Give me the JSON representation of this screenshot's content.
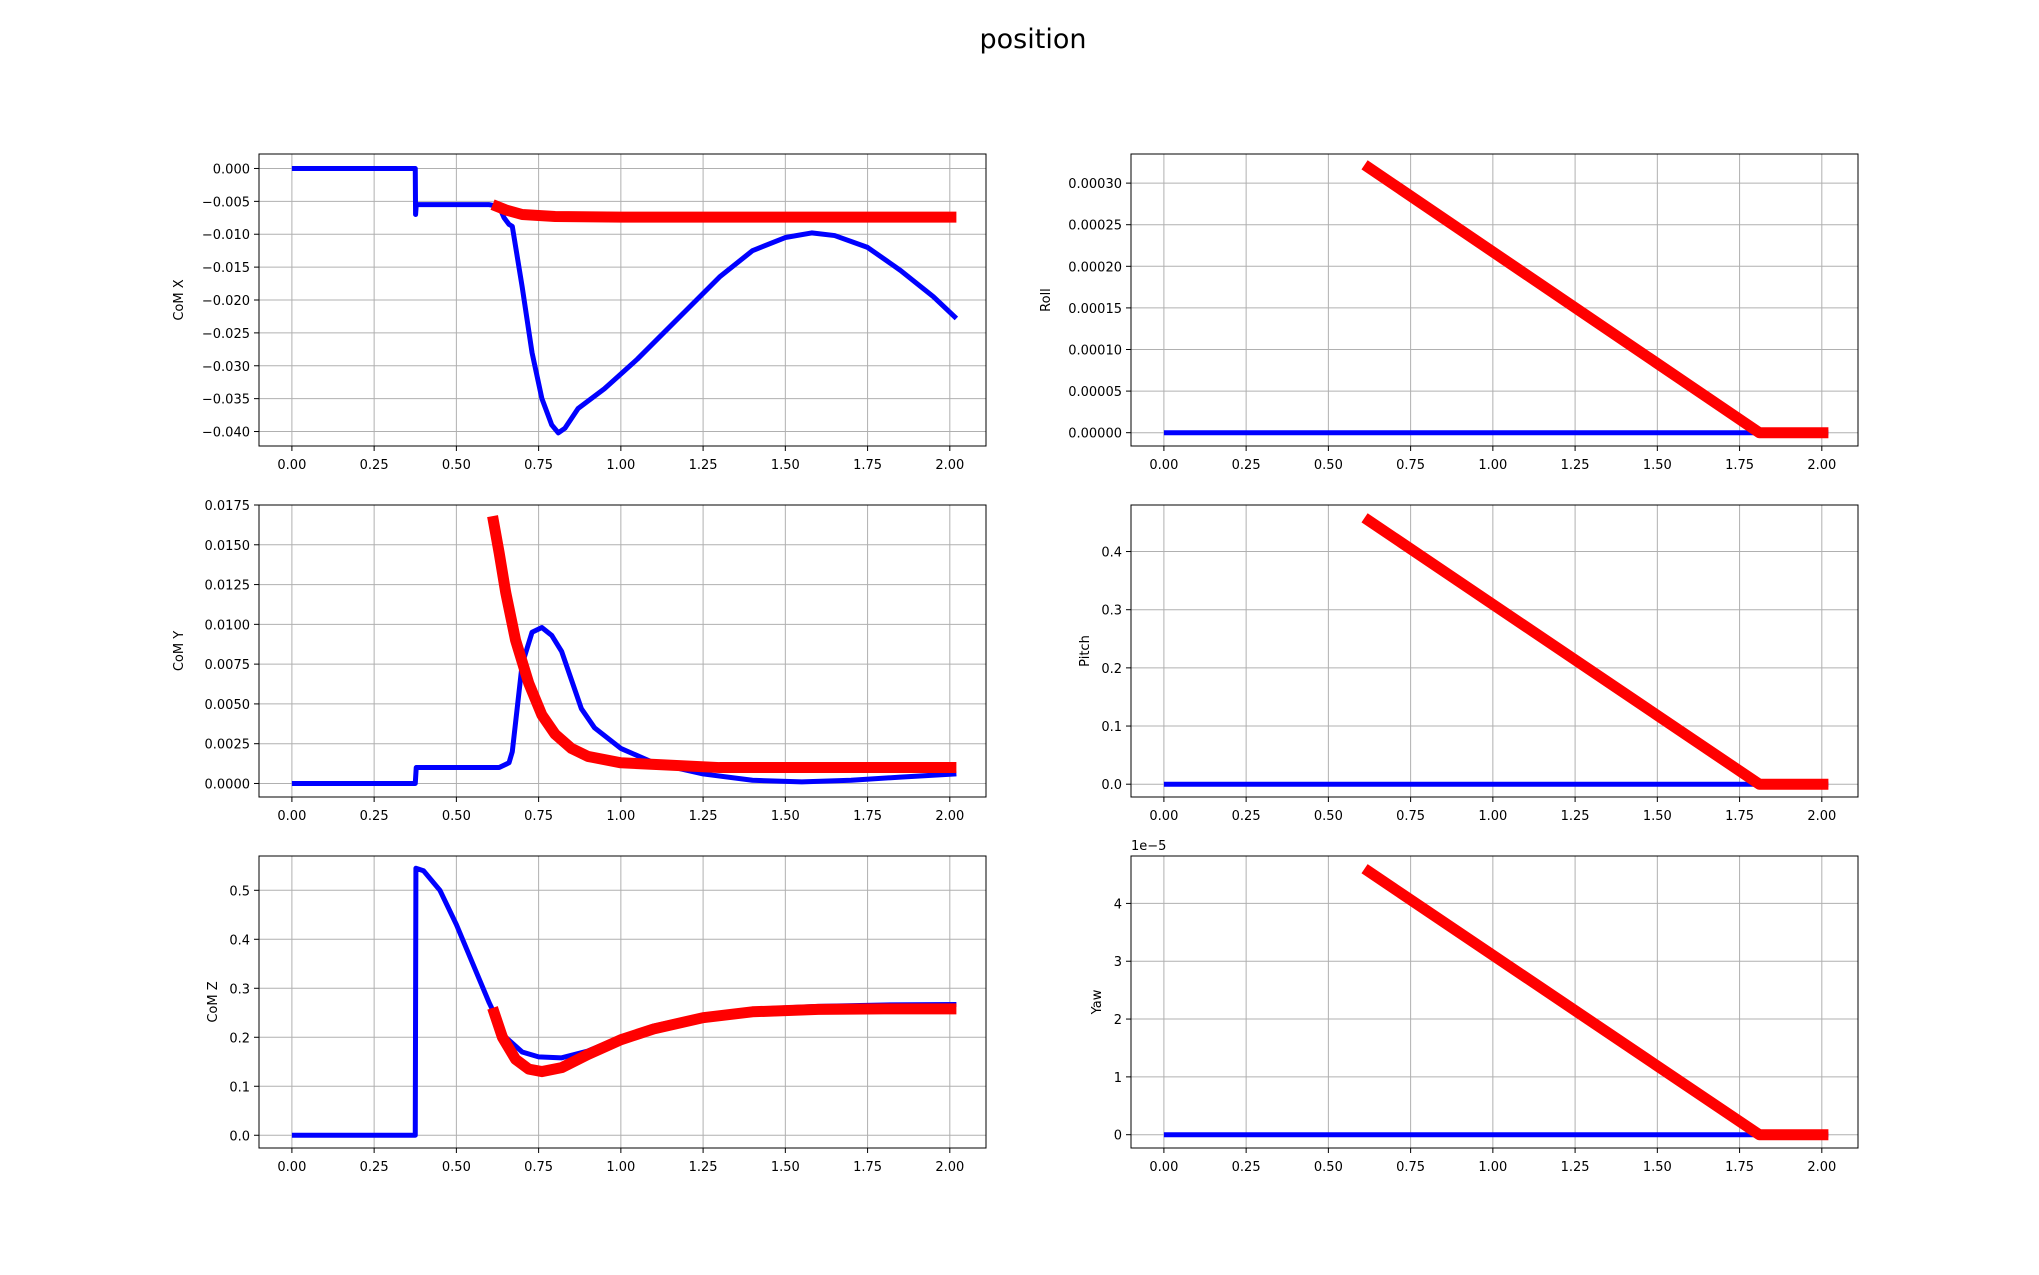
{
  "figure": {
    "title": "position"
  },
  "colors": {
    "measured": "#0000ff",
    "reference": "#ff0000",
    "grid": "#b0b0b0"
  },
  "chart_data": [
    {
      "id": "com-x",
      "type": "line",
      "ylabel": "CoM X",
      "xlim": [
        -0.1,
        2.11
      ],
      "ylim": [
        -0.0422,
        0.0022
      ],
      "xticks": [
        "0.00",
        "0.25",
        "0.50",
        "0.75",
        "1.00",
        "1.25",
        "1.50",
        "1.75",
        "2.00"
      ],
      "yticks": [
        "0.000",
        "−0.005",
        "−0.010",
        "−0.015",
        "−0.020",
        "−0.025",
        "−0.030",
        "−0.035",
        "−0.040"
      ],
      "grid": true,
      "series": [
        {
          "style": "measured",
          "points": [
            [
              0,
              0
            ],
            [
              0.375,
              0
            ],
            [
              0.376,
              -0.007
            ],
            [
              0.378,
              -0.0055
            ],
            [
              0.6,
              -0.0055
            ],
            [
              0.63,
              -0.0058
            ],
            [
              0.645,
              -0.0075
            ],
            [
              0.66,
              -0.0085
            ],
            [
              0.67,
              -0.0088
            ],
            [
              0.7,
              -0.018
            ],
            [
              0.73,
              -0.028
            ],
            [
              0.76,
              -0.035
            ],
            [
              0.79,
              -0.039
            ],
            [
              0.81,
              -0.0402
            ],
            [
              0.83,
              -0.0395
            ],
            [
              0.87,
              -0.0365
            ],
            [
              0.95,
              -0.0335
            ],
            [
              1.05,
              -0.029
            ],
            [
              1.2,
              -0.0215
            ],
            [
              1.3,
              -0.0165
            ],
            [
              1.4,
              -0.0125
            ],
            [
              1.5,
              -0.0105
            ],
            [
              1.58,
              -0.0098
            ],
            [
              1.65,
              -0.0102
            ],
            [
              1.75,
              -0.012
            ],
            [
              1.85,
              -0.0155
            ],
            [
              1.95,
              -0.0195
            ],
            [
              2.02,
              -0.0228
            ]
          ]
        },
        {
          "style": "reference",
          "points": [
            [
              0.61,
              -0.0055
            ],
            [
              0.65,
              -0.0063
            ],
            [
              0.7,
              -0.007
            ],
            [
              0.8,
              -0.0073
            ],
            [
              1.0,
              -0.0074
            ],
            [
              1.5,
              -0.0074
            ],
            [
              2.02,
              -0.0074
            ]
          ]
        }
      ]
    },
    {
      "id": "roll",
      "type": "line",
      "ylabel": "Roll",
      "xlim": [
        -0.1,
        2.11
      ],
      "ylim": [
        -1.6e-05,
        0.000335
      ],
      "xticks": [
        "0.00",
        "0.25",
        "0.50",
        "0.75",
        "1.00",
        "1.25",
        "1.50",
        "1.75",
        "2.00"
      ],
      "yticks": [
        "0.00000",
        "0.00005",
        "0.00010",
        "0.00015",
        "0.00020",
        "0.00025",
        "0.00030"
      ],
      "grid": true,
      "series": [
        {
          "style": "measured",
          "points": [
            [
              0,
              0
            ],
            [
              2.02,
              0
            ]
          ]
        },
        {
          "style": "reference",
          "points": [
            [
              0.61,
              0.000322
            ],
            [
              1.81,
              0
            ],
            [
              2.02,
              0
            ]
          ]
        }
      ]
    },
    {
      "id": "com-y",
      "type": "line",
      "ylabel": "CoM Y",
      "xlim": [
        -0.1,
        2.11
      ],
      "ylim": [
        -0.00085,
        0.0175
      ],
      "xticks": [
        "0.00",
        "0.25",
        "0.50",
        "0.75",
        "1.00",
        "1.25",
        "1.50",
        "1.75",
        "2.00"
      ],
      "yticks": [
        "0.0000",
        "0.0025",
        "0.0050",
        "0.0075",
        "0.0100",
        "0.0125",
        "0.0150",
        "0.0175"
      ],
      "grid": true,
      "series": [
        {
          "style": "measured",
          "points": [
            [
              0,
              0
            ],
            [
              0.375,
              0
            ],
            [
              0.378,
              0.001
            ],
            [
              0.63,
              0.001
            ],
            [
              0.66,
              0.0013
            ],
            [
              0.67,
              0.002
            ],
            [
              0.7,
              0.0075
            ],
            [
              0.73,
              0.0095
            ],
            [
              0.76,
              0.0098
            ],
            [
              0.79,
              0.0093
            ],
            [
              0.82,
              0.0083
            ],
            [
              0.85,
              0.0065
            ],
            [
              0.88,
              0.0047
            ],
            [
              0.92,
              0.0035
            ],
            [
              1.0,
              0.0022
            ],
            [
              1.1,
              0.0013
            ],
            [
              1.25,
              0.0006
            ],
            [
              1.4,
              0.0002
            ],
            [
              1.55,
              0.0001
            ],
            [
              1.7,
              0.0002
            ],
            [
              1.85,
              0.0004
            ],
            [
              2.02,
              0.0006
            ]
          ]
        },
        {
          "style": "reference",
          "points": [
            [
              0.61,
              0.0168
            ],
            [
              0.63,
              0.0145
            ],
            [
              0.65,
              0.012
            ],
            [
              0.68,
              0.009
            ],
            [
              0.72,
              0.0063
            ],
            [
              0.76,
              0.0043
            ],
            [
              0.8,
              0.0031
            ],
            [
              0.85,
              0.0022
            ],
            [
              0.9,
              0.0017
            ],
            [
              1.0,
              0.0013
            ],
            [
              1.1,
              0.0012
            ],
            [
              1.3,
              0.001
            ],
            [
              1.6,
              0.001
            ],
            [
              2.02,
              0.001
            ]
          ]
        }
      ]
    },
    {
      "id": "pitch",
      "type": "line",
      "ylabel": "Pitch",
      "xlim": [
        -0.1,
        2.11
      ],
      "ylim": [
        -0.022,
        0.48
      ],
      "xticks": [
        "0.00",
        "0.25",
        "0.50",
        "0.75",
        "1.00",
        "1.25",
        "1.50",
        "1.75",
        "2.00"
      ],
      "yticks": [
        "0.0",
        "0.1",
        "0.2",
        "0.3",
        "0.4"
      ],
      "grid": true,
      "series": [
        {
          "style": "measured",
          "points": [
            [
              0,
              0
            ],
            [
              2.02,
              0
            ]
          ]
        },
        {
          "style": "reference",
          "points": [
            [
              0.61,
              0.458
            ],
            [
              1.81,
              0
            ],
            [
              2.02,
              0
            ]
          ]
        }
      ]
    },
    {
      "id": "com-z",
      "type": "line",
      "ylabel": "CoM Z",
      "xlim": [
        -0.1,
        2.11
      ],
      "ylim": [
        -0.026,
        0.57
      ],
      "xticks": [
        "0.00",
        "0.25",
        "0.50",
        "0.75",
        "1.00",
        "1.25",
        "1.50",
        "1.75",
        "2.00"
      ],
      "yticks": [
        "0.0",
        "0.1",
        "0.2",
        "0.3",
        "0.4",
        "0.5"
      ],
      "grid": true,
      "series": [
        {
          "style": "measured",
          "points": [
            [
              0,
              0
            ],
            [
              0.375,
              0
            ],
            [
              0.377,
              0.545
            ],
            [
              0.4,
              0.54
            ],
            [
              0.45,
              0.5
            ],
            [
              0.5,
              0.43
            ],
            [
              0.55,
              0.35
            ],
            [
              0.6,
              0.27
            ],
            [
              0.65,
              0.2
            ],
            [
              0.7,
              0.17
            ],
            [
              0.75,
              0.16
            ],
            [
              0.82,
              0.158
            ],
            [
              0.9,
              0.172
            ],
            [
              1.0,
              0.2
            ],
            [
              1.1,
              0.223
            ],
            [
              1.25,
              0.245
            ],
            [
              1.4,
              0.257
            ],
            [
              1.6,
              0.263
            ],
            [
              1.8,
              0.266
            ],
            [
              2.02,
              0.267
            ]
          ]
        },
        {
          "style": "reference",
          "points": [
            [
              0.61,
              0.26
            ],
            [
              0.64,
              0.2
            ],
            [
              0.68,
              0.155
            ],
            [
              0.72,
              0.135
            ],
            [
              0.76,
              0.13
            ],
            [
              0.82,
              0.138
            ],
            [
              0.9,
              0.165
            ],
            [
              1.0,
              0.195
            ],
            [
              1.1,
              0.217
            ],
            [
              1.25,
              0.24
            ],
            [
              1.4,
              0.252
            ],
            [
              1.6,
              0.257
            ],
            [
              1.8,
              0.258
            ],
            [
              2.02,
              0.258
            ]
          ]
        }
      ]
    },
    {
      "id": "yaw",
      "type": "line",
      "ylabel": "Yaw",
      "offset_text": "1e−5",
      "xlim": [
        -0.1,
        2.11
      ],
      "ylim": [
        -2.3e-06,
        4.82e-05
      ],
      "xticks": [
        "0.00",
        "0.25",
        "0.50",
        "0.75",
        "1.00",
        "1.25",
        "1.50",
        "1.75",
        "2.00"
      ],
      "yticks": [
        "0",
        "1",
        "2",
        "3",
        "4"
      ],
      "grid": true,
      "series": [
        {
          "style": "measured",
          "points": [
            [
              0,
              0
            ],
            [
              2.02,
              0
            ]
          ]
        },
        {
          "style": "reference",
          "points": [
            [
              0.61,
              4.6e-05
            ],
            [
              1.81,
              0
            ],
            [
              2.02,
              0
            ]
          ]
        }
      ]
    }
  ]
}
